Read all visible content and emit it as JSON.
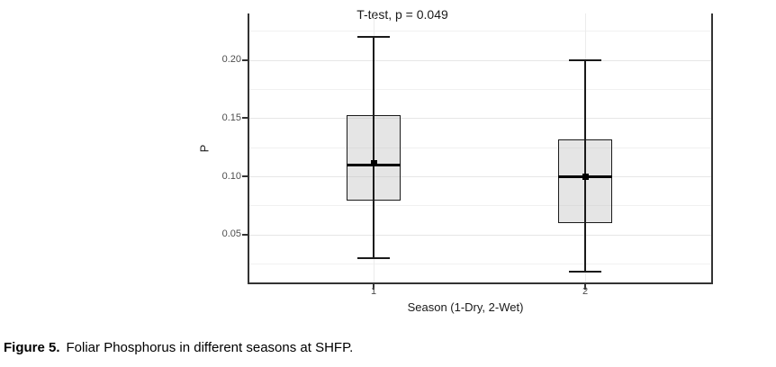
{
  "figure": {
    "caption_label": "Figure 5.",
    "caption_text": "Foliar Phosphorus in different seasons at SHFP."
  },
  "chart_data": {
    "type": "boxplot",
    "title": "T-test, p = 0.049",
    "xlabel": "Season (1-Dry, 2-Wet)",
    "ylabel": "P",
    "categories": [
      "1",
      "2"
    ],
    "ylim": [
      0.008,
      0.24
    ],
    "yticks": {
      "major": [
        0.2,
        0.15,
        0.1,
        0.05
      ],
      "labels": [
        "0.20",
        "0.15",
        "0.10",
        "0.05"
      ],
      "minor": [
        0.225,
        0.175,
        0.125,
        0.075,
        0.025
      ]
    },
    "grid": "horizontal major and minor lines; vertical lines at each category",
    "legend": "none",
    "series": [
      {
        "category": "1",
        "whisker_low": 0.03,
        "q1": 0.079,
        "median": 0.11,
        "q3": 0.153,
        "whisker_high": 0.22,
        "mean": 0.111
      },
      {
        "category": "2",
        "whisker_low": 0.018,
        "q1": 0.06,
        "median": 0.1,
        "q3": 0.132,
        "whisker_high": 0.2,
        "mean": 0.1
      }
    ],
    "colors": {
      "box_fill": "#bebebe66",
      "box_border": "#1a1a1a",
      "median": "#000000",
      "mean_marker": "#000000",
      "axis_line": "#333333",
      "grid_major": "#e6e6e6",
      "grid_minor": "#f1f1f1",
      "grid_vertical": "#ececec",
      "tick_label": "#4d4d4d",
      "annotation_text": "#1a1a1a"
    }
  }
}
